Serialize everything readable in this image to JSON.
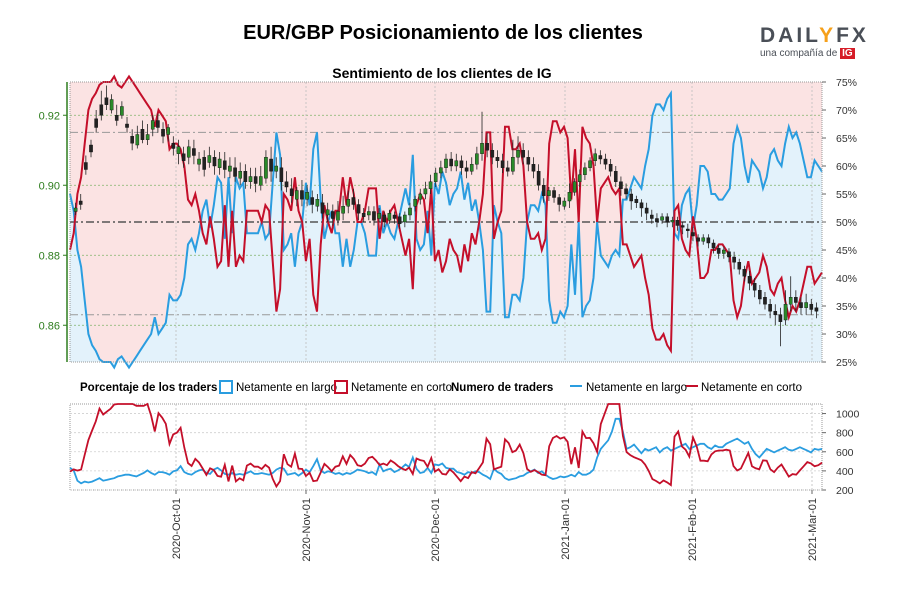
{
  "title": "EUR/GBP Posicionamiento de los clientes",
  "subtitle": "Sentimiento de los clientes de IG",
  "logo": {
    "brand_left": "DAIL",
    "brand_accent": "Y",
    "brand_right": "FX",
    "tagline": "una compañía de",
    "tag_ig": "IG"
  },
  "colors": {
    "long": "#2a9de0",
    "short": "#c40f2a",
    "long_fill": "#e3f2fb",
    "short_fill": "#fbe3e3",
    "price_axis": "#2e7d1e"
  },
  "legend": {
    "pct_title": "Porcentaje de los traders",
    "count_title": "Numero de traders",
    "long": "Netamente en largo",
    "short": "Netamente en corto"
  },
  "chart_data": {
    "type": "line",
    "x_labels": [
      "2020-Oct-01",
      "2020-Nov-01",
      "2020-Dec-01",
      "2021-Jan-01",
      "2021-Feb-01",
      "2021-Mar-01"
    ],
    "price_axis": {
      "ticks": [
        0.86,
        0.88,
        0.9,
        0.92
      ],
      "range": [
        0.8495,
        0.9295
      ]
    },
    "pct_axis": {
      "ticks": [
        "25%",
        "30%",
        "35%",
        "40%",
        "45%",
        "50%",
        "55%",
        "60%",
        "65%",
        "70%",
        "75%"
      ],
      "range": [
        25,
        75
      ]
    },
    "count_axis": {
      "ticks": [
        200,
        400,
        600,
        800,
        1000
      ],
      "range": [
        200,
        1100
      ]
    },
    "reference_lines": {
      "price_dashed": [
        0.863
      ],
      "pct_dashed": [
        50,
        66
      ]
    },
    "series": [
      {
        "name": "Netamente en largo",
        "key": "long",
        "pct": [
          55,
          52,
          45,
          42,
          36,
          30,
          28,
          27,
          25.5,
          25,
          25,
          25,
          24,
          25.5,
          26,
          25,
          24,
          25,
          26,
          27,
          28,
          29,
          30,
          33,
          30,
          31,
          32,
          37,
          36,
          36,
          37,
          40,
          46,
          47,
          45,
          48,
          52,
          54,
          49,
          53,
          58,
          57,
          47,
          58,
          48,
          58,
          56,
          57,
          48,
          48,
          48,
          48,
          50,
          47,
          48,
          57,
          66,
          62,
          45,
          46,
          48,
          42,
          48,
          50,
          57,
          53,
          63,
          66,
          54,
          47,
          50,
          52,
          48,
          48,
          42,
          47,
          42,
          45,
          50,
          50,
          48,
          44,
          44,
          44,
          53,
          48,
          50,
          48,
          47,
          50,
          53,
          56,
          53,
          62,
          47,
          45,
          46,
          52,
          44,
          57,
          55,
          59,
          57,
          53,
          55,
          56,
          59,
          54,
          57,
          52,
          54,
          50,
          45,
          34,
          34,
          53,
          50,
          48,
          33,
          33,
          37,
          37,
          36,
          40,
          50,
          53,
          53,
          52,
          55,
          53,
          36,
          32,
          32,
          34,
          33,
          35,
          46,
          37,
          50,
          33,
          35,
          36,
          40,
          50,
          44,
          43,
          42,
          44,
          45,
          44,
          54,
          54,
          56,
          58,
          57,
          56,
          60,
          63,
          69,
          71,
          71,
          70,
          72,
          73,
          48,
          47,
          53,
          55,
          56,
          49,
          53,
          60,
          60,
          59,
          55,
          55,
          54,
          54,
          55,
          56,
          64,
          67,
          65,
          60,
          57,
          61,
          60,
          59,
          56,
          58,
          62,
          63,
          61,
          60,
          64,
          67,
          65,
          66,
          64,
          61,
          58,
          58,
          61,
          60,
          59
        ],
        "counts": [
          480,
          450,
          330,
          300,
          320,
          310,
          320,
          340,
          360,
          330,
          340,
          350,
          360,
          380,
          390,
          400,
          400,
          390,
          380,
          400,
          420,
          450,
          420,
          400,
          430,
          430,
          420,
          400,
          440,
          450,
          500,
          430,
          410,
          400,
          430,
          450,
          460,
          420,
          410,
          460,
          480,
          450,
          410,
          400,
          420,
          400,
          410,
          400,
          420,
          440,
          410,
          410,
          420,
          410,
          400,
          420,
          460,
          480,
          470,
          400,
          410,
          420,
          390,
          420,
          460,
          430,
          500,
          580,
          450,
          420,
          440,
          430,
          410,
          420,
          400,
          420,
          410,
          430,
          460,
          450,
          440,
          420,
          430,
          400,
          520,
          440,
          460,
          470,
          430,
          450,
          480,
          520,
          490,
          600,
          470,
          420,
          430,
          480,
          420,
          520,
          510,
          530,
          480,
          470,
          470,
          430,
          420,
          400,
          430,
          420,
          440,
          430,
          400,
          380,
          350,
          470,
          430,
          410,
          360,
          340,
          350,
          360,
          380,
          390,
          420,
          440,
          460,
          420,
          440,
          400,
          370,
          350,
          360,
          380,
          370,
          380,
          400,
          380,
          430,
          400,
          400,
          420,
          460,
          600,
          700,
          750,
          800,
          900,
          1050,
          1050,
          900,
          700,
          720,
          750,
          700,
          650,
          700,
          680,
          700,
          720,
          660,
          700,
          720,
          680,
          700,
          720,
          740,
          760,
          700,
          720,
          740,
          760,
          760,
          720,
          700,
          740,
          720,
          720,
          760,
          780,
          800,
          820,
          790,
          760,
          780,
          700,
          640,
          600,
          650,
          700,
          680,
          660,
          680,
          700,
          720,
          690,
          680,
          700,
          720,
          700,
          680,
          660,
          700,
          690,
          700
        ],
        "counts_note": "approximate"
      },
      {
        "name": "Netamente en corto",
        "key": "short"
      }
    ],
    "candles": [
      [
        0.8925,
        0.8935,
        0.8915,
        0.895
      ],
      [
        0.8955,
        0.8945,
        0.893,
        0.8975
      ],
      [
        0.9065,
        0.9045,
        0.903,
        0.9085
      ],
      [
        0.9115,
        0.9095,
        0.908,
        0.913
      ],
      [
        0.919,
        0.9165,
        0.915,
        0.9215
      ],
      [
        0.923,
        0.92,
        0.9185,
        0.927
      ],
      [
        0.925,
        0.923,
        0.9215,
        0.9285
      ],
      [
        0.9215,
        0.9245,
        0.9205,
        0.926
      ],
      [
        0.92,
        0.9185,
        0.917,
        0.923
      ],
      [
        0.92,
        0.9225,
        0.919,
        0.924
      ],
      [
        0.9175,
        0.9165,
        0.915,
        0.9195
      ],
      [
        0.914,
        0.912,
        0.91,
        0.916
      ],
      [
        0.9115,
        0.9145,
        0.9105,
        0.917
      ],
      [
        0.916,
        0.913,
        0.912,
        0.9185
      ],
      [
        0.913,
        0.9145,
        0.9115,
        0.9175
      ],
      [
        0.916,
        0.9185,
        0.914,
        0.92
      ],
      [
        0.9185,
        0.9165,
        0.915,
        0.9205
      ],
      [
        0.916,
        0.914,
        0.912,
        0.918
      ],
      [
        0.9145,
        0.9165,
        0.9125,
        0.9175
      ],
      [
        0.912,
        0.9105,
        0.9085,
        0.914
      ],
      [
        0.909,
        0.911,
        0.906,
        0.913
      ],
      [
        0.909,
        0.907,
        0.905,
        0.911
      ],
      [
        0.908,
        0.911,
        0.906,
        0.913
      ],
      [
        0.9105,
        0.9085,
        0.906,
        0.913
      ],
      [
        0.906,
        0.9075,
        0.904,
        0.9095
      ],
      [
        0.908,
        0.9045,
        0.9025,
        0.91
      ],
      [
        0.9065,
        0.9085,
        0.905,
        0.911
      ],
      [
        0.908,
        0.9055,
        0.903,
        0.91
      ],
      [
        0.905,
        0.9075,
        0.903,
        0.9095
      ],
      [
        0.907,
        0.9045,
        0.902,
        0.9095
      ],
      [
        0.904,
        0.9055,
        0.902,
        0.908
      ],
      [
        0.905,
        0.9025,
        0.901,
        0.908
      ],
      [
        0.902,
        0.904,
        0.9,
        0.9065
      ],
      [
        0.904,
        0.901,
        0.899,
        0.906
      ],
      [
        0.901,
        0.9025,
        0.899,
        0.905
      ],
      [
        0.9025,
        0.9005,
        0.898,
        0.905
      ],
      [
        0.9,
        0.9025,
        0.8985,
        0.9055
      ],
      [
        0.902,
        0.908,
        0.9005,
        0.91
      ],
      [
        0.9075,
        0.904,
        0.901,
        0.911
      ],
      [
        0.904,
        0.9055,
        0.902,
        0.908
      ],
      [
        0.905,
        0.901,
        0.8985,
        0.908
      ],
      [
        0.901,
        0.8995,
        0.898,
        0.904
      ],
      [
        0.899,
        0.897,
        0.895,
        0.902
      ],
      [
        0.896,
        0.8985,
        0.894,
        0.8995
      ],
      [
        0.8985,
        0.896,
        0.894,
        0.9015
      ],
      [
        0.896,
        0.898,
        0.894,
        0.9
      ],
      [
        0.8965,
        0.8945,
        0.892,
        0.8985
      ],
      [
        0.894,
        0.896,
        0.8925,
        0.8975
      ],
      [
        0.895,
        0.892,
        0.8905,
        0.8975
      ],
      [
        0.8915,
        0.893,
        0.8895,
        0.895
      ],
      [
        0.8925,
        0.8905,
        0.8885,
        0.8945
      ],
      [
        0.89,
        0.8925,
        0.8885,
        0.8955
      ],
      [
        0.892,
        0.894,
        0.89,
        0.897
      ],
      [
        0.894,
        0.896,
        0.892,
        0.8985
      ],
      [
        0.8965,
        0.8945,
        0.893,
        0.899
      ],
      [
        0.8945,
        0.892,
        0.89,
        0.896
      ],
      [
        0.892,
        0.891,
        0.8895,
        0.8935
      ],
      [
        0.8915,
        0.8925,
        0.89,
        0.894
      ],
      [
        0.8925,
        0.89,
        0.8885,
        0.894
      ],
      [
        0.8905,
        0.892,
        0.8895,
        0.8935
      ],
      [
        0.8915,
        0.8895,
        0.888,
        0.8925
      ],
      [
        0.89,
        0.892,
        0.889,
        0.893
      ],
      [
        0.8915,
        0.8905,
        0.889,
        0.8925
      ],
      [
        0.891,
        0.889,
        0.8875,
        0.892
      ],
      [
        0.8895,
        0.8915,
        0.888,
        0.8925
      ],
      [
        0.8915,
        0.8935,
        0.89,
        0.895
      ],
      [
        0.894,
        0.896,
        0.8925,
        0.897
      ],
      [
        0.896,
        0.8975,
        0.8945,
        0.899
      ],
      [
        0.8975,
        0.899,
        0.896,
        0.901
      ],
      [
        0.899,
        0.901,
        0.8975,
        0.903
      ],
      [
        0.901,
        0.9035,
        0.8995,
        0.905
      ],
      [
        0.9035,
        0.905,
        0.902,
        0.907
      ],
      [
        0.905,
        0.9075,
        0.9035,
        0.909
      ],
      [
        0.9075,
        0.9055,
        0.904,
        0.9095
      ],
      [
        0.9055,
        0.907,
        0.904,
        0.909
      ],
      [
        0.907,
        0.905,
        0.903,
        0.9085
      ],
      [
        0.905,
        0.904,
        0.902,
        0.907
      ],
      [
        0.904,
        0.906,
        0.903,
        0.908
      ],
      [
        0.906,
        0.909,
        0.9045,
        0.911
      ],
      [
        0.909,
        0.912,
        0.907,
        0.921
      ],
      [
        0.912,
        0.91,
        0.908,
        0.915
      ],
      [
        0.91,
        0.908,
        0.906,
        0.912
      ],
      [
        0.908,
        0.907,
        0.905,
        0.91
      ],
      [
        0.907,
        0.905,
        0.9035,
        0.909
      ],
      [
        0.905,
        0.904,
        0.9025,
        0.907
      ],
      [
        0.904,
        0.908,
        0.903,
        0.913
      ],
      [
        0.908,
        0.91,
        0.906,
        0.914
      ],
      [
        0.91,
        0.908,
        0.906,
        0.912
      ],
      [
        0.908,
        0.906,
        0.904,
        0.91
      ],
      [
        0.906,
        0.904,
        0.902,
        0.908
      ],
      [
        0.904,
        0.9,
        0.8985,
        0.906
      ],
      [
        0.9,
        0.897,
        0.895,
        0.902
      ],
      [
        0.897,
        0.8985,
        0.8955,
        0.8995
      ],
      [
        0.8985,
        0.8965,
        0.895,
        0.8995
      ],
      [
        0.8965,
        0.8945,
        0.8925,
        0.8975
      ],
      [
        0.894,
        0.8955,
        0.893,
        0.8965
      ],
      [
        0.8955,
        0.898,
        0.8935,
        0.9005
      ],
      [
        0.898,
        0.901,
        0.897,
        0.902
      ],
      [
        0.901,
        0.903,
        0.8995,
        0.9045
      ],
      [
        0.903,
        0.905,
        0.9015,
        0.9065
      ],
      [
        0.905,
        0.907,
        0.904,
        0.908
      ],
      [
        0.907,
        0.909,
        0.9055,
        0.9105
      ],
      [
        0.9085,
        0.9075,
        0.906,
        0.91
      ],
      [
        0.9075,
        0.906,
        0.9045,
        0.909
      ],
      [
        0.906,
        0.904,
        0.9025,
        0.9075
      ],
      [
        0.904,
        0.901,
        0.8995,
        0.9055
      ],
      [
        0.901,
        0.899,
        0.897,
        0.9025
      ],
      [
        0.899,
        0.8975,
        0.896,
        0.9005
      ],
      [
        0.8975,
        0.8955,
        0.893,
        0.899
      ],
      [
        0.896,
        0.895,
        0.8935,
        0.897
      ],
      [
        0.895,
        0.8935,
        0.891,
        0.896
      ],
      [
        0.8935,
        0.892,
        0.89,
        0.895
      ],
      [
        0.8915,
        0.8905,
        0.889,
        0.893
      ],
      [
        0.8905,
        0.8895,
        0.888,
        0.892
      ],
      [
        0.89,
        0.891,
        0.889,
        0.892
      ],
      [
        0.891,
        0.8895,
        0.888,
        0.892
      ],
      [
        0.8895,
        0.89,
        0.888,
        0.891
      ],
      [
        0.89,
        0.8885,
        0.887,
        0.891
      ],
      [
        0.8885,
        0.888,
        0.886,
        0.8895
      ],
      [
        0.8875,
        0.887,
        0.885,
        0.889
      ],
      [
        0.8865,
        0.8855,
        0.884,
        0.888
      ],
      [
        0.885,
        0.884,
        0.8825,
        0.886
      ],
      [
        0.884,
        0.885,
        0.883,
        0.886
      ],
      [
        0.885,
        0.8835,
        0.882,
        0.886
      ],
      [
        0.8835,
        0.882,
        0.8805,
        0.8845
      ],
      [
        0.882,
        0.8805,
        0.879,
        0.883
      ],
      [
        0.8805,
        0.8815,
        0.879,
        0.8825
      ],
      [
        0.881,
        0.8795,
        0.878,
        0.882
      ],
      [
        0.8795,
        0.878,
        0.876,
        0.881
      ],
      [
        0.878,
        0.876,
        0.8745,
        0.879
      ],
      [
        0.876,
        0.874,
        0.8725,
        0.877
      ],
      [
        0.874,
        0.872,
        0.87,
        0.8755
      ],
      [
        0.872,
        0.87,
        0.868,
        0.8735
      ],
      [
        0.87,
        0.8675,
        0.866,
        0.8715
      ],
      [
        0.868,
        0.866,
        0.8645,
        0.8695
      ],
      [
        0.866,
        0.864,
        0.862,
        0.8675
      ],
      [
        0.864,
        0.863,
        0.86,
        0.866
      ],
      [
        0.863,
        0.861,
        0.854,
        0.865
      ],
      [
        0.8615,
        0.866,
        0.86,
        0.87
      ],
      [
        0.866,
        0.868,
        0.864,
        0.874
      ],
      [
        0.868,
        0.8665,
        0.864,
        0.87
      ],
      [
        0.8665,
        0.865,
        0.863,
        0.868
      ],
      [
        0.865,
        0.8665,
        0.863,
        0.869
      ],
      [
        0.866,
        0.8645,
        0.863,
        0.8675
      ],
      [
        0.865,
        0.864,
        0.862,
        0.8665
      ]
    ]
  }
}
